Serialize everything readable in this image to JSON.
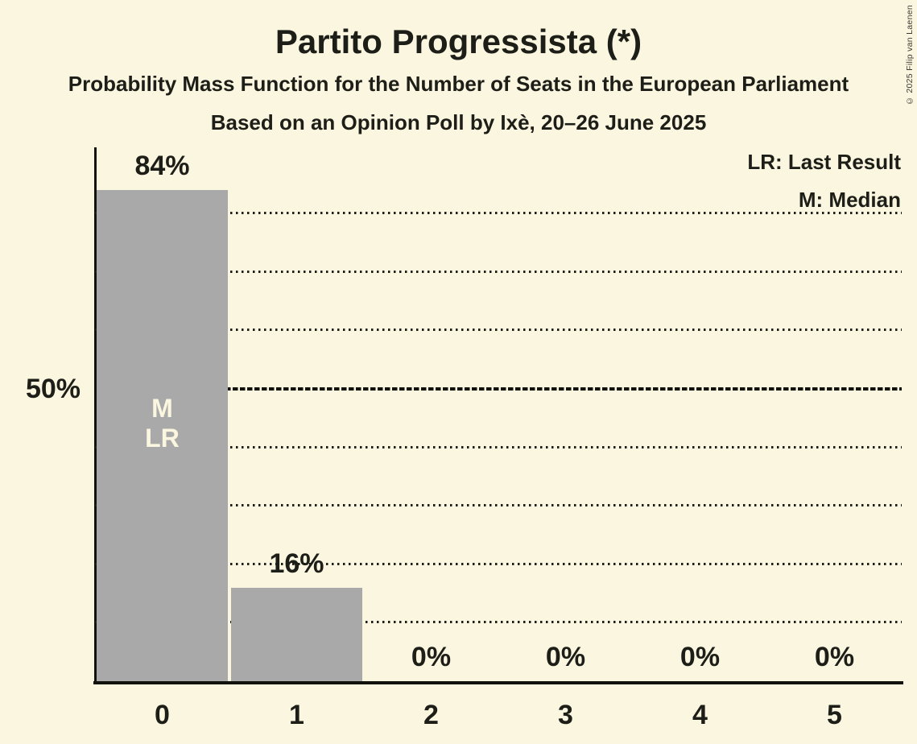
{
  "title": "Partito Progressista (*)",
  "subtitle1": "Probability Mass Function for the Number of Seats in the European Parliament",
  "subtitle2": "Based on an Opinion Poll by Ixè, 20–26 June 2025",
  "copyright": "© 2025 Filip van Laenen",
  "legend": {
    "lr": "LR: Last Result",
    "m": "M: Median"
  },
  "colors": {
    "background": "#FAF6DF",
    "bar": "#A9A9A9",
    "text": "#1E1E18",
    "in_bar_label": "#FAF6DF"
  },
  "chart_data": {
    "type": "bar",
    "title": "Partito Progressista (*)",
    "categories": [
      "0",
      "1",
      "2",
      "3",
      "4",
      "5"
    ],
    "values": [
      84,
      16,
      0,
      0,
      0,
      0
    ],
    "value_labels": [
      "84%",
      "16%",
      "0%",
      "0%",
      "0%",
      "0%"
    ],
    "xlabel": "",
    "ylabel": "",
    "ylim": [
      0,
      91
    ],
    "ytick": {
      "pct": 50,
      "label": "50%"
    },
    "gridlines_pct": [
      10,
      20,
      30,
      40,
      60,
      70,
      80
    ],
    "median_line_pct": 50,
    "grid": "dotted horizontal, solid dashed line at 50%",
    "legend_position": "top-right",
    "legend_entries": [
      "LR: Last Result",
      "M: Median"
    ],
    "bar_annotations": [
      {
        "category_index": 0,
        "lines": [
          "M",
          "LR"
        ]
      }
    ]
  }
}
